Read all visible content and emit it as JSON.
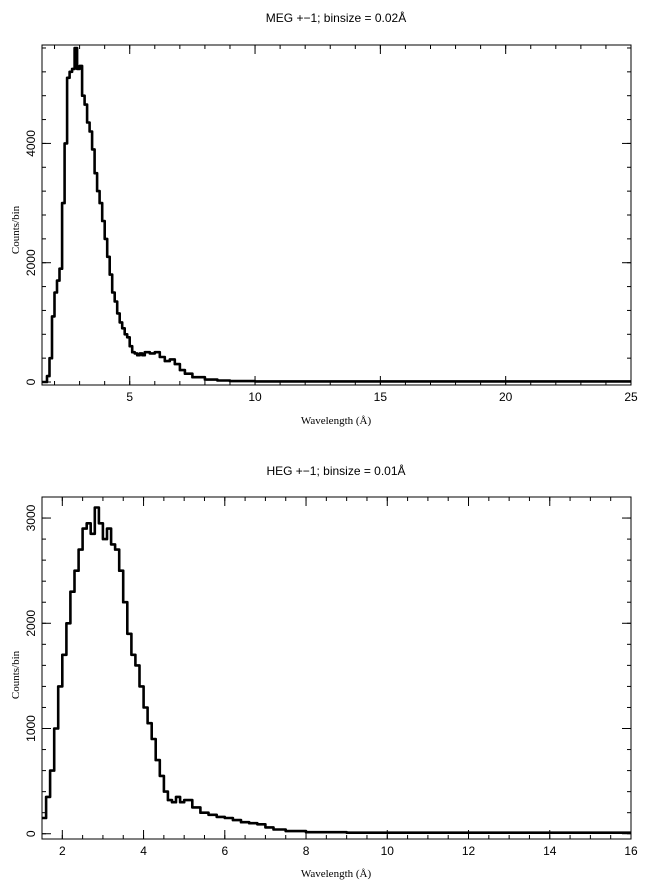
{
  "chart_data": [
    {
      "type": "line",
      "title": "MEG +−1; binsize = 0.02Å",
      "xlabel": "Wavelength (Å)",
      "ylabel": "Counts/bin",
      "xlim": [
        1.5,
        25
      ],
      "ylim": [
        -50,
        5650
      ],
      "xticks": [
        5,
        10,
        15,
        20,
        25
      ],
      "yticks": [
        0,
        2000,
        4000
      ],
      "x_minor_step": 1,
      "y_minor_step": 400,
      "grid": false,
      "legend": "none",
      "series": [
        {
          "x": [
            1.5,
            1.7,
            1.8,
            1.9,
            2.0,
            2.1,
            2.2,
            2.3,
            2.4,
            2.5,
            2.6,
            2.7,
            2.8,
            2.9,
            3.0,
            3.1,
            3.2,
            3.3,
            3.4,
            3.5,
            3.6,
            3.7,
            3.8,
            3.9,
            4.0,
            4.1,
            4.2,
            4.3,
            4.4,
            4.5,
            4.6,
            4.7,
            4.8,
            4.9,
            5.0,
            5.1,
            5.2,
            5.3,
            5.4,
            5.5,
            5.6,
            5.8,
            6.0,
            6.2,
            6.4,
            6.6,
            6.8,
            7.0,
            7.2,
            7.5,
            8.0,
            8.5,
            9.0,
            10,
            12,
            15,
            20,
            25
          ],
          "y": [
            0,
            100,
            400,
            1100,
            1500,
            1700,
            1900,
            3000,
            4000,
            5100,
            5200,
            5250,
            5600,
            5250,
            5300,
            4800,
            4650,
            4350,
            4200,
            3900,
            3500,
            3200,
            3000,
            2700,
            2400,
            2100,
            1800,
            1500,
            1350,
            1150,
            1000,
            900,
            800,
            750,
            600,
            500,
            480,
            450,
            480,
            450,
            500,
            480,
            500,
            420,
            350,
            380,
            300,
            200,
            140,
            80,
            40,
            25,
            15,
            10,
            10,
            10,
            10,
            10
          ]
        }
      ]
    },
    {
      "type": "line",
      "title": "HEG +−1; binsize = 0.01Å",
      "xlabel": "Wavelength (Å)",
      "ylabel": "Counts/bin",
      "xlim": [
        1.5,
        16
      ],
      "ylim": [
        -50,
        3200
      ],
      "xticks": [
        2,
        4,
        6,
        8,
        10,
        12,
        14,
        16
      ],
      "yticks": [
        0,
        1000,
        2000,
        3000
      ],
      "x_minor_step": 0.5,
      "y_minor_step": 200,
      "grid": false,
      "legend": "none",
      "series": [
        {
          "x": [
            1.5,
            1.6,
            1.7,
            1.8,
            1.9,
            2.0,
            2.1,
            2.2,
            2.3,
            2.4,
            2.5,
            2.6,
            2.7,
            2.8,
            2.9,
            3.0,
            3.1,
            3.2,
            3.3,
            3.4,
            3.5,
            3.6,
            3.7,
            3.8,
            3.9,
            4.0,
            4.1,
            4.2,
            4.3,
            4.4,
            4.5,
            4.6,
            4.7,
            4.8,
            4.9,
            5.0,
            5.2,
            5.4,
            5.6,
            5.8,
            6.0,
            6.2,
            6.4,
            6.6,
            6.8,
            7.0,
            7.2,
            7.5,
            8.0,
            9.0,
            10,
            12,
            14,
            16
          ],
          "y": [
            150,
            350,
            600,
            1000,
            1400,
            1700,
            2000,
            2300,
            2500,
            2700,
            2900,
            2950,
            2850,
            3100,
            2950,
            2800,
            2900,
            2750,
            2700,
            2500,
            2200,
            1900,
            1700,
            1600,
            1400,
            1200,
            1050,
            900,
            700,
            550,
            400,
            320,
            300,
            350,
            300,
            320,
            250,
            200,
            180,
            160,
            150,
            130,
            110,
            100,
            90,
            60,
            40,
            25,
            15,
            10,
            10,
            10,
            10,
            10
          ]
        }
      ]
    }
  ]
}
